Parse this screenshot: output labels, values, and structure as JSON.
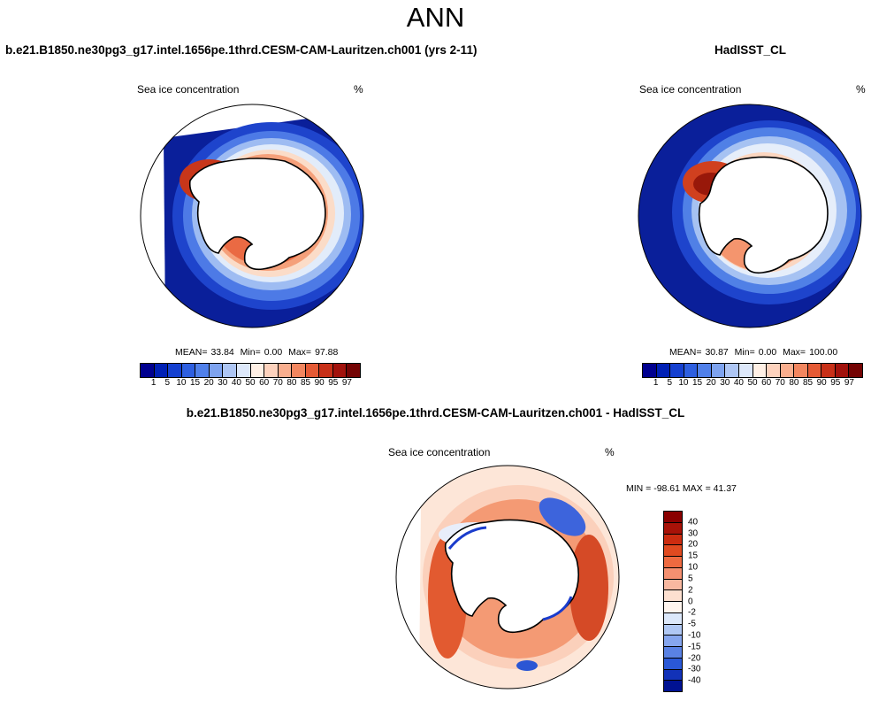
{
  "title": "ANN",
  "panels": {
    "model": {
      "case_title": "b.e21.B1850.ne30pg3_g17.intel.1656pe.1thrd.CESM-CAM-Lauritzen.ch001 (yrs 2-11)",
      "left_label": "Sea ice concentration",
      "right_label": "%",
      "stats": {
        "mean_label": "MEAN=",
        "mean": "33.84",
        "min_label": "Min=",
        "min": "0.00",
        "max_label": "Max=",
        "max": "97.88"
      }
    },
    "obs": {
      "case_title": "HadISST_CL",
      "left_label": "Sea ice concentration",
      "right_label": "%",
      "stats": {
        "mean_label": "MEAN=",
        "mean": "30.87",
        "min_label": "Min=",
        "min": "0.00",
        "max_label": "Max=",
        "max": "100.00"
      }
    },
    "diff": {
      "case_title": "b.e21.B1850.ne30pg3_g17.intel.1656pe.1thrd.CESM-CAM-Lauritzen.ch001 - HadISST_CL",
      "left_label": "Sea ice concentration",
      "right_label": "%",
      "minmax": "MIN = -98.61 MAX =  41.37"
    }
  },
  "colorbars": {
    "absolute": {
      "labels": [
        "1",
        "5",
        "10",
        "15",
        "20",
        "30",
        "40",
        "50",
        "60",
        "70",
        "80",
        "85",
        "90",
        "95",
        "97"
      ],
      "colors": [
        "#00008f",
        "#0020b5",
        "#1540d0",
        "#2e5fe0",
        "#5080ea",
        "#7ea3ef",
        "#aec6f4",
        "#dde8fa",
        "#fff0e5",
        "#fdd2bd",
        "#f9ae8e",
        "#f2865f",
        "#e55a35",
        "#c83018",
        "#a2120c",
        "#740404"
      ]
    },
    "difference": {
      "labels": [
        "40",
        "30",
        "20",
        "15",
        "10",
        "5",
        "2",
        "0",
        "-2",
        "-5",
        "-10",
        "-15",
        "-20",
        "-30",
        "-40"
      ],
      "colors": [
        "#8a0000",
        "#a81208",
        "#cc2c10",
        "#e04a20",
        "#ee6a40",
        "#f59070",
        "#f8b8a0",
        "#fde0d0",
        "#fff5ee",
        "#dce8fa",
        "#b0c8f4",
        "#86a6ee",
        "#5a82e4",
        "#2a58d6",
        "#1232b8",
        "#001292"
      ]
    }
  },
  "map_colors": {
    "ocean_outer": "#0a1f9a",
    "ice_high": "#cf3a1e",
    "land": "#ffffff",
    "coast": "#000000"
  }
}
